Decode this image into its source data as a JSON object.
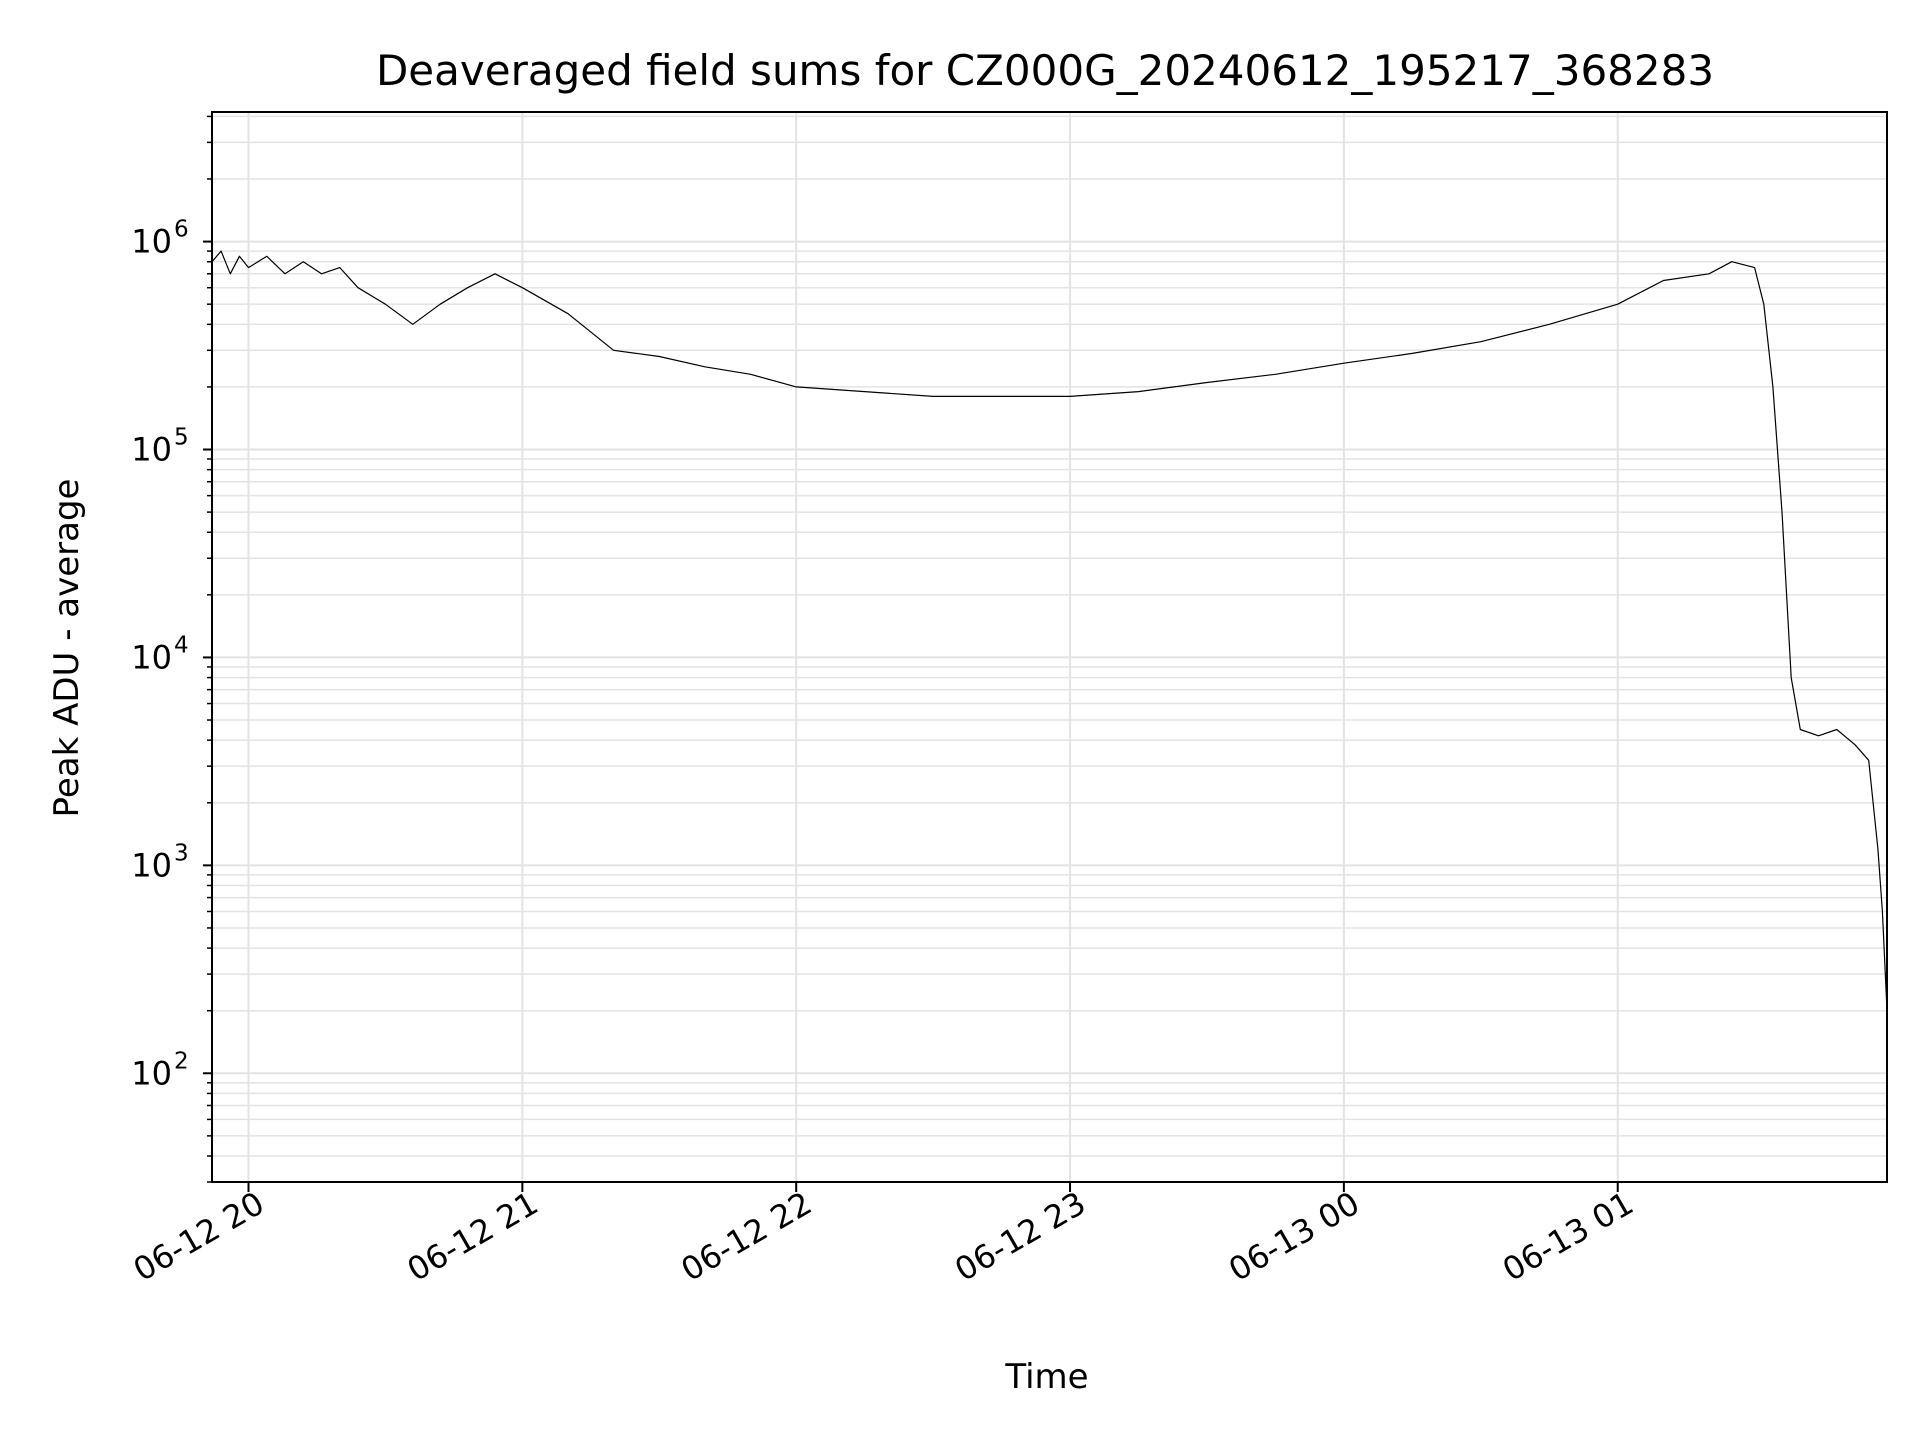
{
  "chart_data": {
    "type": "line",
    "title": "Deaveraged field sums for CZ000G_20240612_195217_368283",
    "xlabel": "Time",
    "ylabel": "Peak ADU - average",
    "yscale": "log",
    "grid": true,
    "xlim": [
      "2024-06-12 19:52",
      "2024-06-13 01:59"
    ],
    "ylim": [
      30,
      4200000
    ],
    "x_ticks": [
      {
        "value": "2024-06-12 20:00",
        "label": "06-12 20"
      },
      {
        "value": "2024-06-12 21:00",
        "label": "06-12 21"
      },
      {
        "value": "2024-06-12 22:00",
        "label": "06-12 22"
      },
      {
        "value": "2024-06-12 23:00",
        "label": "06-12 23"
      },
      {
        "value": "2024-06-13 00:00",
        "label": "06-13 00"
      },
      {
        "value": "2024-06-13 01:00",
        "label": "06-13 01"
      }
    ],
    "y_ticks": [
      {
        "value": 100,
        "base": "10",
        "exp": "2"
      },
      {
        "value": 1000,
        "base": "10",
        "exp": "3"
      },
      {
        "value": 10000,
        "base": "10",
        "exp": "4"
      },
      {
        "value": 100000,
        "base": "10",
        "exp": "5"
      },
      {
        "value": 1000000,
        "base": "10",
        "exp": "6"
      }
    ],
    "series": [
      {
        "color": "#000000",
        "points": [
          [
            "2024-06-12 19:52",
            800000
          ],
          [
            "2024-06-12 19:54",
            900000
          ],
          [
            "2024-06-12 19:56",
            700000
          ],
          [
            "2024-06-12 19:58",
            850000
          ],
          [
            "2024-06-12 20:00",
            750000
          ],
          [
            "2024-06-12 20:04",
            850000
          ],
          [
            "2024-06-12 20:08",
            700000
          ],
          [
            "2024-06-12 20:12",
            800000
          ],
          [
            "2024-06-12 20:16",
            700000
          ],
          [
            "2024-06-12 20:20",
            750000
          ],
          [
            "2024-06-12 20:24",
            600000
          ],
          [
            "2024-06-12 20:30",
            500000
          ],
          [
            "2024-06-12 20:36",
            400000
          ],
          [
            "2024-06-12 20:42",
            500000
          ],
          [
            "2024-06-12 20:48",
            600000
          ],
          [
            "2024-06-12 20:54",
            700000
          ],
          [
            "2024-06-12 21:00",
            600000
          ],
          [
            "2024-06-12 21:10",
            450000
          ],
          [
            "2024-06-12 21:20",
            300000
          ],
          [
            "2024-06-12 21:30",
            280000
          ],
          [
            "2024-06-12 21:40",
            250000
          ],
          [
            "2024-06-12 21:50",
            230000
          ],
          [
            "2024-06-12 22:00",
            200000
          ],
          [
            "2024-06-12 22:15",
            190000
          ],
          [
            "2024-06-12 22:30",
            180000
          ],
          [
            "2024-06-12 22:45",
            180000
          ],
          [
            "2024-06-12 23:00",
            180000
          ],
          [
            "2024-06-12 23:15",
            190000
          ],
          [
            "2024-06-12 23:30",
            210000
          ],
          [
            "2024-06-12 23:45",
            230000
          ],
          [
            "2024-06-13 00:00",
            260000
          ],
          [
            "2024-06-13 00:15",
            290000
          ],
          [
            "2024-06-13 00:30",
            330000
          ],
          [
            "2024-06-13 00:45",
            400000
          ],
          [
            "2024-06-13 01:00",
            500000
          ],
          [
            "2024-06-13 01:10",
            650000
          ],
          [
            "2024-06-13 01:20",
            700000
          ],
          [
            "2024-06-13 01:25",
            800000
          ],
          [
            "2024-06-13 01:30",
            750000
          ],
          [
            "2024-06-13 01:32",
            500000
          ],
          [
            "2024-06-13 01:34",
            200000
          ],
          [
            "2024-06-13 01:36",
            50000
          ],
          [
            "2024-06-13 01:38",
            8000
          ],
          [
            "2024-06-13 01:40",
            4500
          ],
          [
            "2024-06-13 01:44",
            4200
          ],
          [
            "2024-06-13 01:48",
            4500
          ],
          [
            "2024-06-13 01:52",
            3800
          ],
          [
            "2024-06-13 01:55",
            3200
          ],
          [
            "2024-06-13 01:57",
            1200
          ],
          [
            "2024-06-13 01:58",
            600
          ],
          [
            "2024-06-13 01:59",
            200
          ]
        ]
      }
    ]
  }
}
